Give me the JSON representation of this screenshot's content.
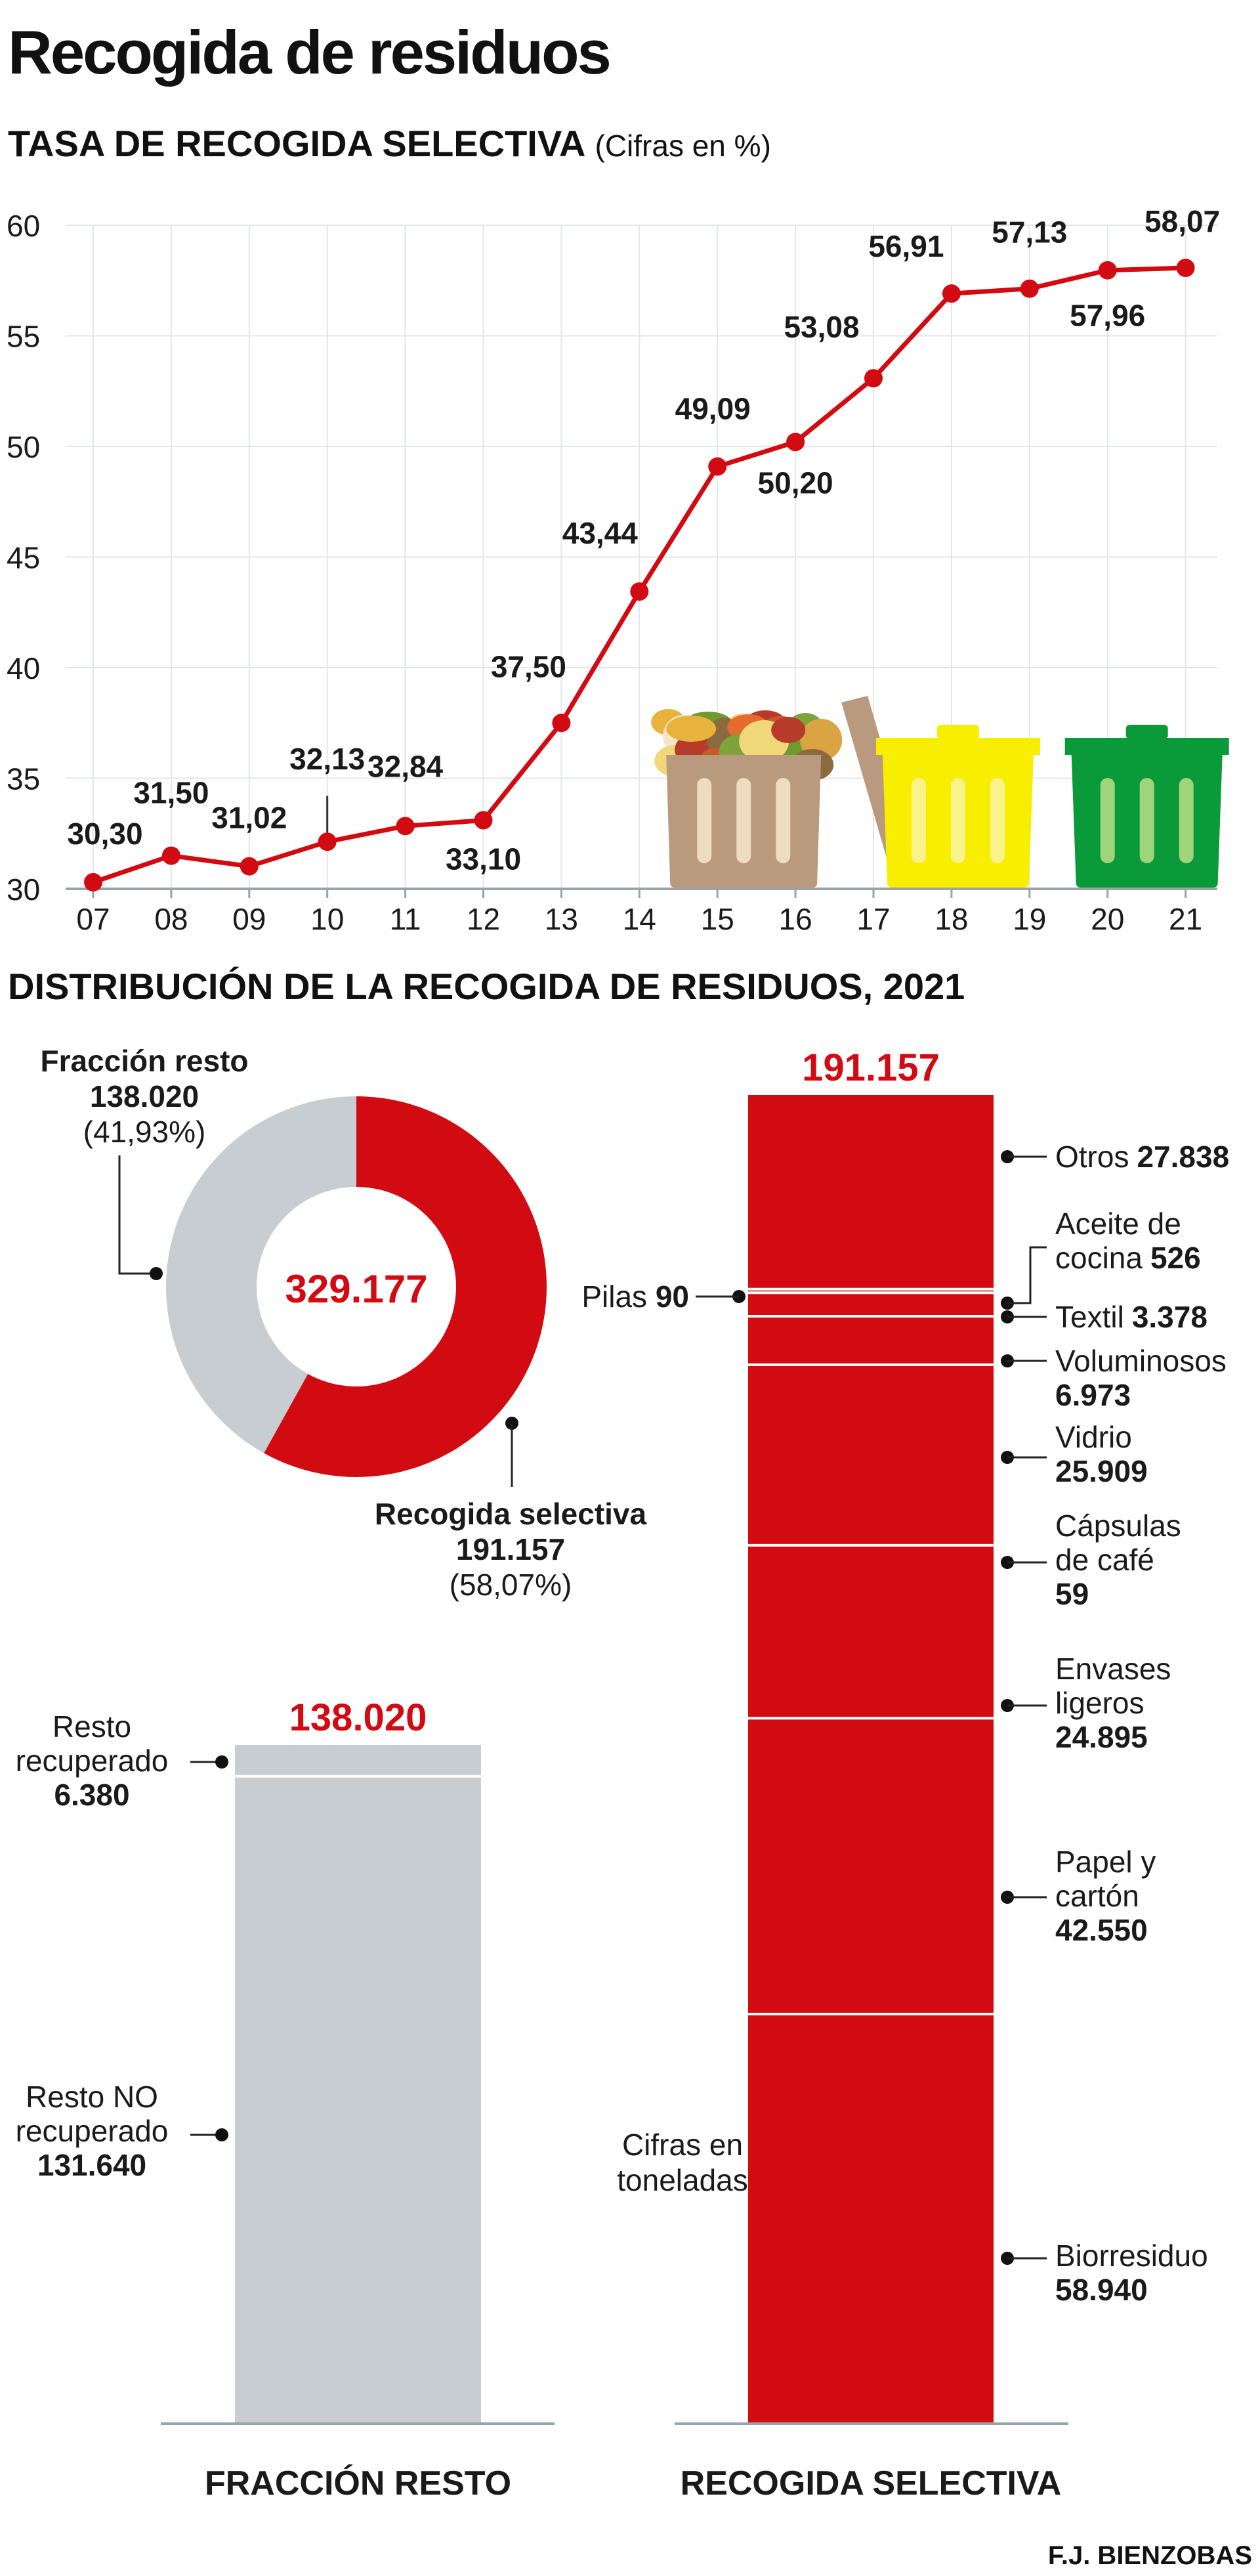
{
  "title": "Recogida de residuos",
  "credit": "F.J. BIENZOBAS",
  "colors": {
    "red": "#d20a11",
    "grey": "#c8cdd1",
    "grid": "#e3e6e8",
    "axis": "#9aa3a8",
    "text": "#1a1a1a",
    "bin_brown": "#b99a7f",
    "bin_yellow": "#f7ee00",
    "bin_green": "#0a9a3a"
  },
  "icons": [
    "organic-waste-bin-icon",
    "yellow-bin-icon",
    "green-bin-icon"
  ],
  "chart_data": [
    {
      "type": "line",
      "title": "TASA DE RECOGIDA SELECTIVA",
      "subtitle": "(Cifras en %)",
      "x": [
        "07",
        "08",
        "09",
        "10",
        "11",
        "12",
        "13",
        "14",
        "15",
        "16",
        "17",
        "18",
        "19",
        "20",
        "21"
      ],
      "series": [
        {
          "values": [
            30.3,
            31.5,
            31.02,
            32.13,
            32.84,
            33.1,
            37.5,
            43.44,
            49.09,
            50.2,
            53.08,
            56.91,
            57.13,
            57.96,
            58.07
          ],
          "labels": [
            "30,30",
            "31,50",
            "31,02",
            "32,13",
            "32,84",
            "33,10",
            "37,50",
            "43,44",
            "49,09",
            "50,20",
            "53,08",
            "56,91",
            "57,13",
            "57,96",
            "58,07"
          ]
        }
      ],
      "ylim": [
        30,
        60
      ],
      "yticks": [
        30,
        35,
        40,
        45,
        50,
        55,
        60
      ],
      "grid": true
    },
    {
      "type": "pie",
      "title": "DISTRIBUCIÓN DE LA RECOGIDA DE RESIDUOS, 2021",
      "center_label": "329.177",
      "slices": [
        {
          "name": "Recogida selectiva",
          "value": 191157,
          "value_label": "191.157",
          "pct": "(58,07%)"
        },
        {
          "name": "Fracción resto",
          "value": 138020,
          "value_label": "138.020",
          "pct": "(41,93%)"
        }
      ]
    },
    {
      "type": "bar",
      "title": "FRACCIÓN RESTO",
      "total": 138020,
      "total_label": "138.020",
      "segments": [
        {
          "name": "Resto recuperado",
          "value": 6380,
          "value_label": "6.380"
        },
        {
          "name": "Resto NO recuperado",
          "value": 131640,
          "value_label": "131.640"
        }
      ]
    },
    {
      "type": "bar",
      "title": "RECOGIDA SELECTIVA",
      "total": 191157,
      "total_label": "191.157",
      "segments": [
        {
          "name": "Otros",
          "value": 27838,
          "value_label": "27.838"
        },
        {
          "name": "Pilas",
          "value": 90,
          "value_label": "90"
        },
        {
          "name": "Aceite de cocina",
          "value": 526,
          "value_label": "526"
        },
        {
          "name": "Textil",
          "value": 3378,
          "value_label": "3.378"
        },
        {
          "name": "Voluminosos",
          "value": 6973,
          "value_label": "6.973"
        },
        {
          "name": "Vidrio",
          "value": 25909,
          "value_label": "25.909"
        },
        {
          "name": "Cápsulas de café",
          "value": 59,
          "value_label": "59"
        },
        {
          "name": "Envases ligeros",
          "value": 24895,
          "value_label": "24.895"
        },
        {
          "name": "Papel y cartón",
          "value": 42550,
          "value_label": "42.550"
        },
        {
          "name": "Biorresiduo",
          "value": 58940,
          "value_label": "58.940"
        }
      ],
      "note": "Cifras en toneladas"
    }
  ]
}
